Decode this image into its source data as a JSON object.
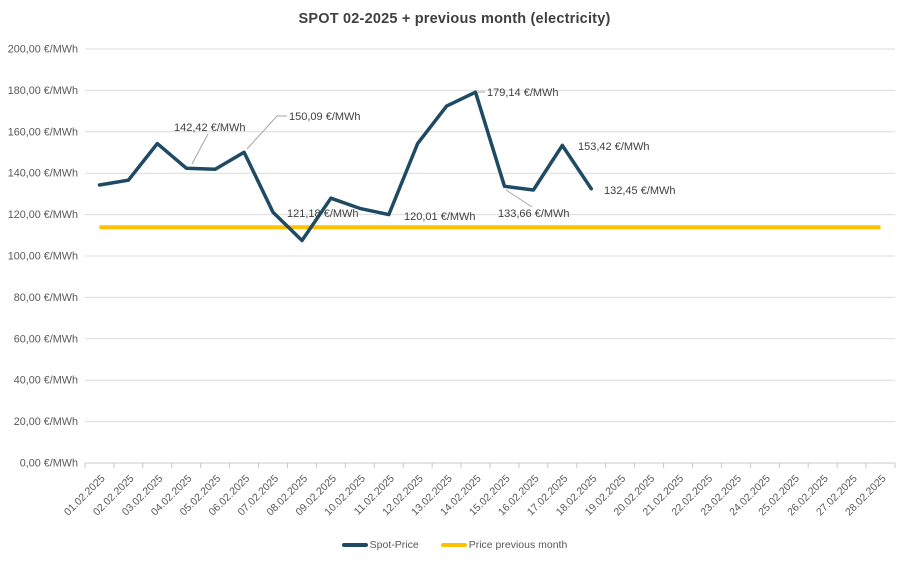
{
  "title": "SPOT 02-2025 + previous month (electricity)",
  "colors": {
    "spot_line": "#1F4A63",
    "previous_month_line": "#FFC000",
    "gridline": "#DCDCDC",
    "axis_line": "#C9C9C9",
    "tick_label": "#595959",
    "annotation_text": "#404040",
    "title_text": "#3F3F3F",
    "leader_line": "#A6A6A6"
  },
  "y_axis": {
    "unit": "€/MWh",
    "tick_labels": [
      "0,00 €/MWh",
      "20,00 €/MWh",
      "40,00 €/MWh",
      "60,00 €/MWh",
      "80,00 €/MWh",
      "100,00 €/MWh",
      "120,00 €/MWh",
      "140,00 €/MWh",
      "160,00 €/MWh",
      "180,00 €/MWh",
      "200,00 €/MWh"
    ]
  },
  "legend": [
    {
      "label": "Spot-Price"
    },
    {
      "label": "Price previous month"
    }
  ],
  "chart_data": {
    "type": "line",
    "title": "SPOT 02-2025 + previous month (electricity)",
    "x_categories": [
      "01.02.2025",
      "02.02.2025",
      "03.02.2025",
      "04.02.2025",
      "05.02.2025",
      "06.02.2025",
      "07.02.2025",
      "08.02.2025",
      "09.02.2025",
      "10.02.2025",
      "11.02.2025",
      "12.02.2025",
      "13.02.2025",
      "14.02.2025",
      "15.02.2025",
      "16.02.2025",
      "17.02.2025",
      "18.02.2025",
      "19.02.2025",
      "20.02.2025",
      "21.02.2025",
      "22.02.2025",
      "23.02.2025",
      "24.02.2025",
      "25.02.2025",
      "26.02.2025",
      "27.02.2025",
      "28.02.2025"
    ],
    "ylim": [
      0,
      200
    ],
    "y_tick_step": 20,
    "grid": "horizontal",
    "legend_position": "bottom-center",
    "series": [
      {
        "name": "Spot-Price",
        "color": "#1F4A63",
        "values": [
          134.3,
          136.6,
          154.3,
          142.42,
          141.9,
          150.09,
          121.18,
          107.5,
          127.9,
          123.0,
          120.01,
          154.4,
          172.4,
          179.14,
          133.66,
          131.9,
          153.42,
          132.45,
          null,
          null,
          null,
          null,
          null,
          null,
          null,
          null,
          null,
          null
        ]
      },
      {
        "name": "Price previous month",
        "color": "#FFC000",
        "constant_value": 113.9
      }
    ],
    "annotations": [
      {
        "index": 3,
        "date": "04.02.2025",
        "label": "142,42 €/MWh"
      },
      {
        "index": 5,
        "date": "06.02.2025",
        "label": "150,09 €/MWh"
      },
      {
        "index": 6,
        "date": "07.02.2025",
        "label": "121,18 €/MWh"
      },
      {
        "index": 10,
        "date": "11.02.2025",
        "label": "120,01 €/MWh"
      },
      {
        "index": 13,
        "date": "14.02.2025",
        "label": "179,14 €/MWh"
      },
      {
        "index": 14,
        "date": "15.02.2025",
        "label": "133,66 €/MWh"
      },
      {
        "index": 16,
        "date": "17.02.2025",
        "label": "153,42 €/MWh"
      },
      {
        "index": 17,
        "date": "18.02.2025",
        "label": "132,45 €/MWh"
      }
    ]
  }
}
